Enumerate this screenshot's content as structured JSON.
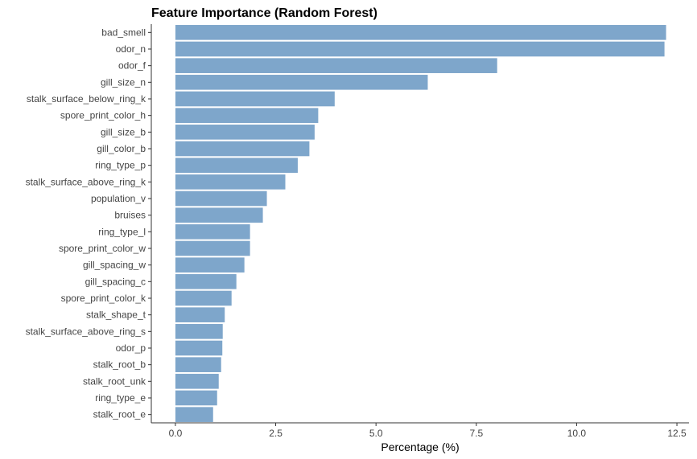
{
  "chart_data": {
    "type": "bar",
    "orientation": "horizontal",
    "title": "Feature Importance (Random Forest)",
    "xlabel": "Percentage (%)",
    "ylabel": "",
    "xlim": [
      -0.6,
      12.8
    ],
    "xticks": [
      0,
      2.5,
      5,
      7.5,
      10,
      12.5
    ],
    "xtick_labels": [
      "0.0",
      "2.5",
      "5.0",
      "7.5",
      "10.0",
      "12.5"
    ],
    "grid": false,
    "bar_color": "#7ea6cb",
    "categories": [
      "bad_smell",
      "odor_n",
      "odor_f",
      "gill_size_n",
      "stalk_surface_below_ring_k",
      "spore_print_color_h",
      "gill_size_b",
      "gill_color_b",
      "ring_type_p",
      "stalk_surface_above_ring_k",
      "population_v",
      "bruises",
      "ring_type_l",
      "spore_print_color_w",
      "gill_spacing_w",
      "gill_spacing_c",
      "spore_print_color_k",
      "stalk_shape_t",
      "stalk_surface_above_ring_s",
      "odor_p",
      "stalk_root_b",
      "stalk_root_unk",
      "ring_type_e",
      "stalk_root_e"
    ],
    "values": [
      12.23,
      12.19,
      8.02,
      6.29,
      3.97,
      3.56,
      3.47,
      3.34,
      3.05,
      2.74,
      2.28,
      2.18,
      1.86,
      1.86,
      1.72,
      1.52,
      1.4,
      1.23,
      1.18,
      1.17,
      1.14,
      1.08,
      1.04,
      0.94
    ]
  }
}
